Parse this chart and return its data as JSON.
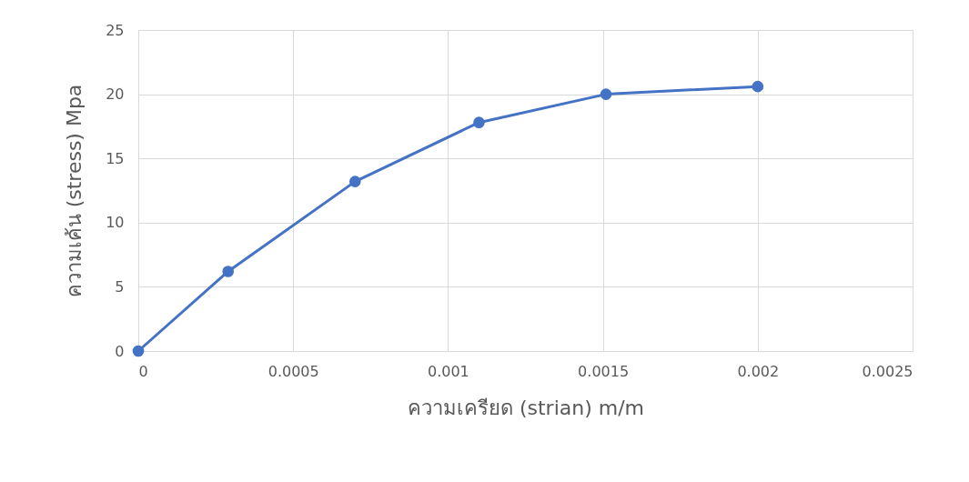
{
  "chart_data": {
    "type": "line",
    "xlabel": "ความเครียด (strian) m/m",
    "ylabel": "ความเค้น (stress) Mpa",
    "x": [
      0,
      0.00029,
      0.0007,
      0.0011,
      0.00151,
      0.002
    ],
    "series": [
      {
        "color": "#4472c4",
        "values": [
          0,
          6.2,
          13.2,
          17.8,
          20.0,
          20.6
        ]
      }
    ],
    "xlim": [
      0,
      0.0025
    ],
    "xticks": [
      0,
      0.0005,
      0.001,
      0.0015,
      0.002,
      0.0025
    ],
    "ylim": [
      0,
      25
    ],
    "yticks": [
      0,
      5,
      10,
      15,
      20,
      25
    ],
    "grid": true,
    "marker": "circle",
    "line_style": "solid"
  }
}
